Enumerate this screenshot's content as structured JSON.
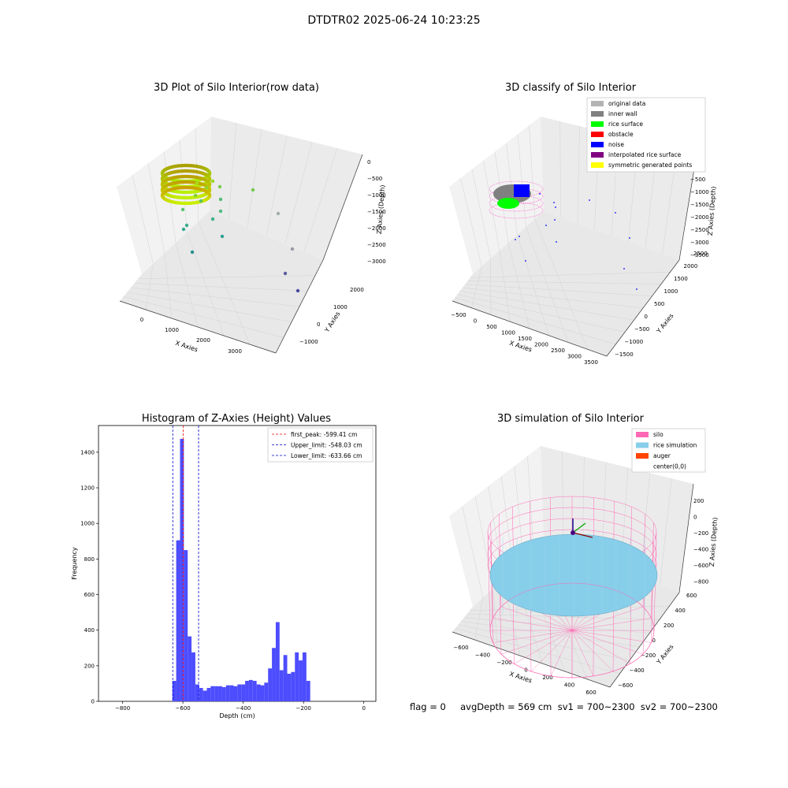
{
  "figure_title": "DTDTR02 2025-06-24 10:23:25",
  "footer_text": "flag = 0     avgDepth = 569 cm  sv1 = 700~2300  sv2 = 700~2300",
  "colors": {
    "hist_bar": "#4d4dff",
    "peak_line": "#ff0000",
    "limit_line": "#0000cc",
    "silo_wire": "#ff69b4",
    "rice_sim": "#87ceeb",
    "auger": "#ff4500"
  },
  "chart_data": [
    {
      "type": "scatter",
      "title": "3D Plot of Silo Interior(row data)",
      "xlabel": "X Axies",
      "ylabel": "Y Axies",
      "zlabel": "Z Axies (Depth)",
      "x_ticks": [
        "0",
        "1000",
        "2000",
        "3000"
      ],
      "y_ticks": [
        "−1000",
        "0",
        "1000",
        "2000"
      ],
      "z_ticks": [
        "0",
        "−500",
        "−1000",
        "−1500",
        "−2000",
        "−2500",
        "−3000"
      ]
    },
    {
      "type": "scatter",
      "title": "3D classify of Silo Interior",
      "xlabel": "X Axies",
      "ylabel": "Y Axies",
      "zlabel": "Z Axies (Depth)",
      "x_ticks": [
        "−500",
        "0",
        "500",
        "1000",
        "1500",
        "2000",
        "2500",
        "3000",
        "3500"
      ],
      "y_ticks": [
        "−1500",
        "−1000",
        "−500",
        "0",
        "500",
        "1000",
        "1500",
        "2000",
        "2500"
      ],
      "z_ticks": [
        "0",
        "−500",
        "−1000",
        "−1500",
        "−2000",
        "−2500",
        "−3000",
        "−3500"
      ],
      "legend_position": "top-right",
      "legend": [
        {
          "label": "original data",
          "color": "#b3b3b3"
        },
        {
          "label": "inner wall",
          "color": "#808080"
        },
        {
          "label": "rice surface",
          "color": "#00ff00"
        },
        {
          "label": "obstacle",
          "color": "#ff0000"
        },
        {
          "label": "noise",
          "color": "#0000ff"
        },
        {
          "label": "interpolated rice surface",
          "color": "#800080"
        },
        {
          "label": "symmetric generated points",
          "color": "#ffff00"
        }
      ]
    },
    {
      "type": "bar",
      "title": "Histogram of Z-Axies (Height) Values",
      "xlabel": "Depth (cm)",
      "ylabel": "Frequency",
      "xlim": [
        -880,
        40
      ],
      "ylim": [
        0,
        1550
      ],
      "x_ticks": [
        -800,
        -600,
        -400,
        -200,
        0
      ],
      "x_tick_labels": [
        "−800",
        "−600",
        "−400",
        "−200",
        "0"
      ],
      "y_ticks": [
        0,
        200,
        400,
        600,
        800,
        1000,
        1200,
        1400
      ],
      "bin_start": -635,
      "bin_width": 12.7,
      "values": [
        115,
        905,
        1475,
        850,
        365,
        275,
        95,
        75,
        60,
        75,
        85,
        85,
        85,
        80,
        90,
        90,
        85,
        95,
        95,
        115,
        120,
        115,
        95,
        90,
        105,
        185,
        300,
        445,
        175,
        260,
        155,
        165,
        275,
        230,
        275,
        115
      ],
      "legend_position": "top-right",
      "vlines": [
        {
          "label": "first_peak: -599.41 cm",
          "x": -599.41,
          "color": "#ff0000"
        },
        {
          "label": "Upper_limit: -548.03 cm",
          "x": -548.03,
          "color": "#0000cc"
        },
        {
          "label": "Lower_limit: -633.66 cm",
          "x": -633.66,
          "color": "#0000cc"
        }
      ]
    },
    {
      "type": "scatter",
      "title": "3D simulation of Silo Interior",
      "xlabel": "X Axies",
      "ylabel": "Y Axies",
      "zlabel": "Z Axies (Depth)",
      "x_ticks": [
        "−600",
        "−400",
        "−200",
        "0",
        "200",
        "400",
        "600"
      ],
      "y_ticks": [
        "−600",
        "−400",
        "−200",
        "0",
        "200",
        "400",
        "600"
      ],
      "z_ticks": [
        "200",
        "0",
        "−200",
        "−400",
        "−600",
        "−800"
      ],
      "legend_position": "top-right",
      "legend": [
        {
          "label": "silo",
          "color": "#ff69b4"
        },
        {
          "label": "rice simulation",
          "color": "#87ceeb"
        },
        {
          "label": "auger",
          "color": "#ff4500"
        },
        {
          "label": "center(0,0)",
          "color": "#ffffff"
        }
      ]
    }
  ]
}
